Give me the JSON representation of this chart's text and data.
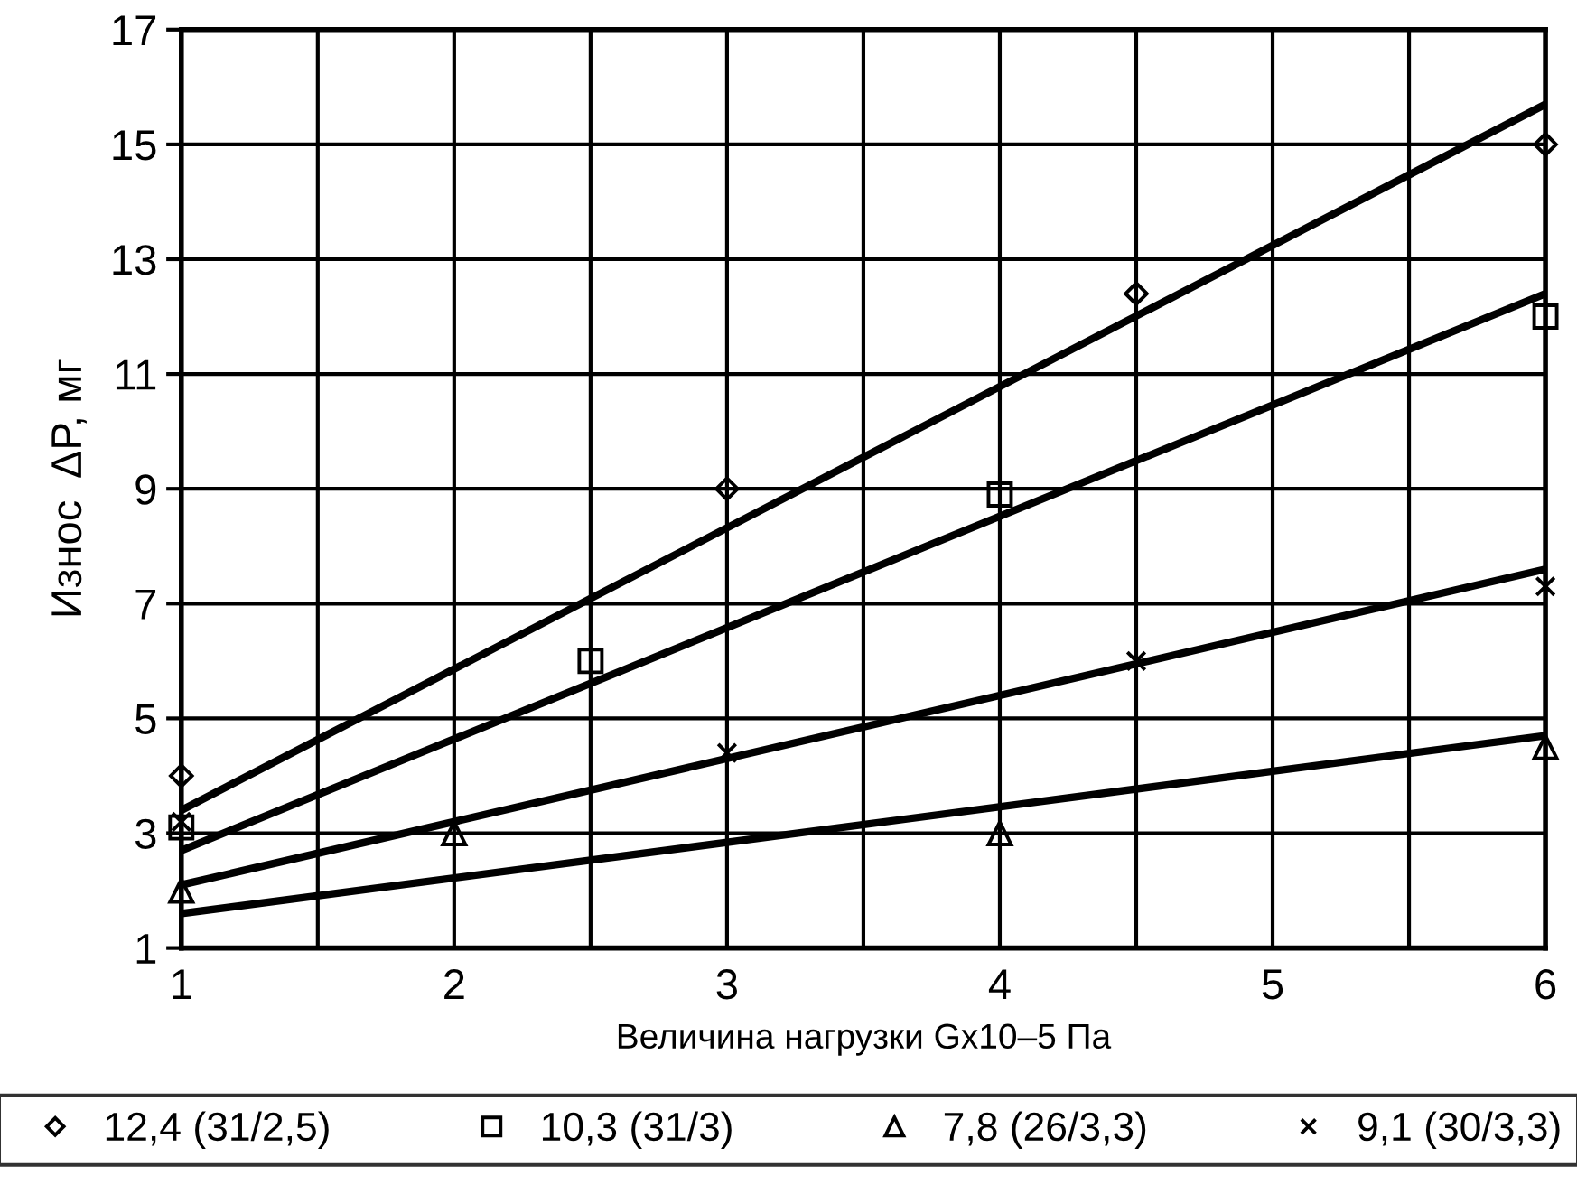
{
  "chart_data": {
    "type": "scatter",
    "xlabel": "Величина нагрузки Gx10–5 Па",
    "ylabel": "Износ  ΔP, мг",
    "xlim": [
      1,
      6
    ],
    "ylim": [
      1,
      17
    ],
    "xticks": [
      1,
      {
        "value": 1.5,
        "label": null
      },
      2,
      {
        "value": 2.5,
        "label": null
      },
      3,
      {
        "value": 3.5,
        "label": null
      },
      4,
      {
        "value": 4.5,
        "label": null
      },
      5,
      {
        "value": 5.5,
        "label": null
      },
      6
    ],
    "yticks": [
      1,
      3,
      5,
      7,
      9,
      11,
      13,
      15,
      17
    ],
    "grid": true,
    "legend": "bottom",
    "series": [
      {
        "name": "12,4 (31/2,5)",
        "marker": "diamond",
        "color": "#000000",
        "x": [
          1,
          3,
          4.5,
          6
        ],
        "values": [
          4.0,
          9.0,
          12.4,
          15.0
        ]
      },
      {
        "name": "10,3 (31/3)",
        "marker": "square",
        "color": "#000000",
        "x": [
          1,
          2.5,
          4,
          6
        ],
        "values": [
          3.1,
          6.0,
          8.9,
          12.0
        ]
      },
      {
        "name": "7,8 (26/3,3)",
        "marker": "triangle",
        "color": "#000000",
        "x": [
          1,
          2,
          4,
          6
        ],
        "values": [
          2.0,
          3.0,
          3.0,
          4.5
        ]
      },
      {
        "name": "9,1 (30/3,3)",
        "marker": "cross",
        "color": "#000000",
        "x": [
          1,
          3,
          4.5,
          6
        ],
        "values": [
          3.2,
          4.4,
          6.0,
          7.3
        ]
      },
      {
        "type": "line",
        "color": "#000000",
        "x": [
          1,
          6
        ],
        "values": [
          3.4,
          15.7
        ]
      },
      {
        "type": "line",
        "color": "#000000",
        "x": [
          1,
          6
        ],
        "values": [
          2.7,
          12.4
        ]
      },
      {
        "type": "line",
        "color": "#000000",
        "x": [
          1,
          6
        ],
        "values": [
          1.6,
          4.7
        ]
      },
      {
        "type": "line",
        "color": "#000000",
        "x": [
          1,
          6
        ],
        "values": [
          2.1,
          7.6
        ]
      }
    ]
  }
}
